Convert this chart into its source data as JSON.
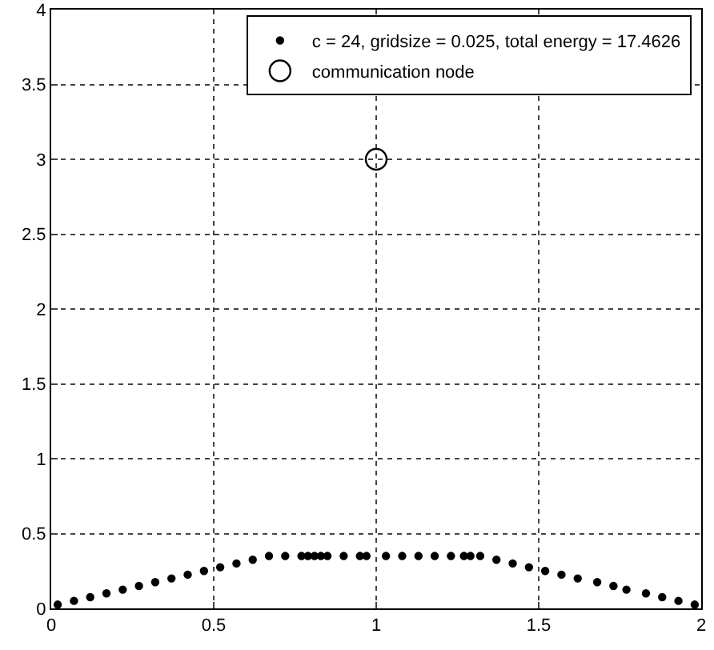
{
  "chart_data": {
    "type": "scatter",
    "xlim": [
      0,
      2
    ],
    "ylim": [
      0,
      4
    ],
    "xticks": [
      0,
      0.5,
      1,
      1.5,
      2
    ],
    "yticks": [
      0,
      0.5,
      1,
      1.5,
      2,
      2.5,
      3,
      3.5,
      4
    ],
    "grid": true,
    "legend": "top right",
    "series": [
      {
        "name": "c = 24, gridsize = 0.025, total energy = 17.4626",
        "color": "#000000",
        "marker": "circle",
        "x": [
          0.02,
          0.07,
          0.12,
          0.17,
          0.22,
          0.27,
          0.32,
          0.37,
          0.42,
          0.47,
          0.52,
          0.57,
          0.62,
          0.67,
          0.72,
          0.77,
          0.79,
          0.81,
          0.83,
          0.85,
          0.9,
          0.95,
          0.97,
          1.03,
          1.08,
          1.13,
          1.18,
          1.23,
          1.27,
          1.29,
          1.32,
          1.37,
          1.42,
          1.47,
          1.52,
          1.57,
          1.62,
          1.68,
          1.73,
          1.77,
          1.83,
          1.88,
          1.93,
          1.98
        ],
        "values": [
          0.025,
          0.05,
          0.075,
          0.1,
          0.125,
          0.15,
          0.175,
          0.2,
          0.225,
          0.25,
          0.275,
          0.3,
          0.325,
          0.35,
          0.35,
          0.35,
          0.35,
          0.35,
          0.35,
          0.35,
          0.35,
          0.35,
          0.35,
          0.35,
          0.35,
          0.35,
          0.35,
          0.35,
          0.35,
          0.35,
          0.35,
          0.325,
          0.3,
          0.275,
          0.25,
          0.225,
          0.2,
          0.175,
          0.15,
          0.125,
          0.1,
          0.075,
          0.05,
          0.025
        ]
      },
      {
        "name": "communication node",
        "color": "#000000",
        "marker": "circle-open",
        "x": [
          1
        ],
        "values": [
          3
        ]
      }
    ]
  }
}
